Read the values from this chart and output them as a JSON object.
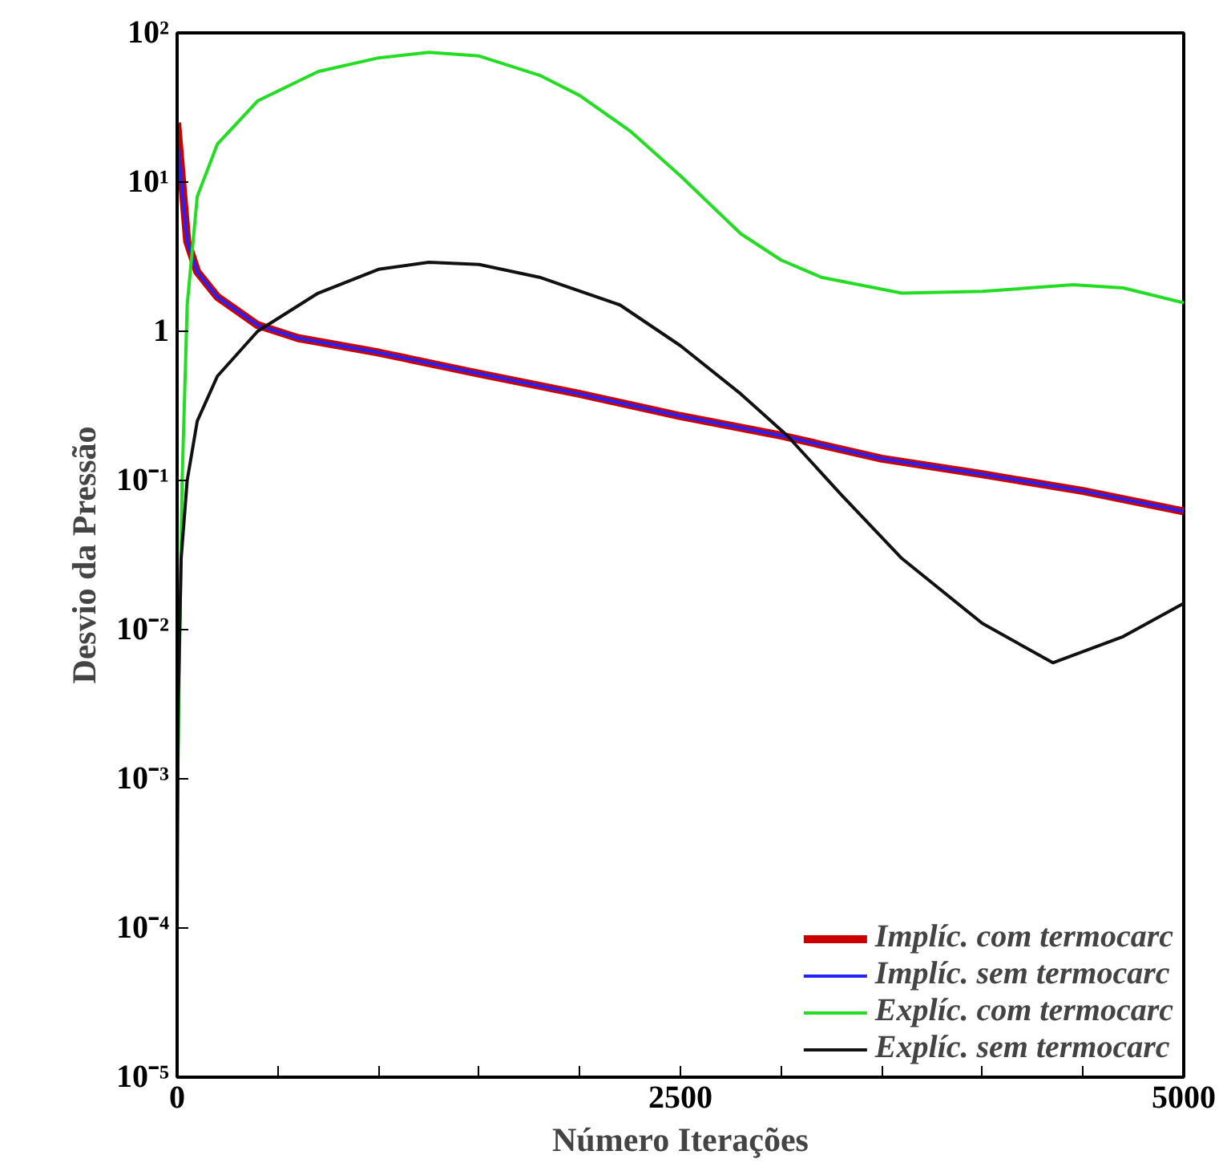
{
  "chart_data": {
    "type": "line",
    "xlabel": "Número Iterações",
    "ylabel": "Desvio da Pressão",
    "log": "y",
    "xlim": [
      0,
      5000
    ],
    "ylim": [
      1e-05,
      100
    ],
    "xticks": [
      0,
      {
        "value": 500,
        "label": null
      },
      {
        "value": 1000,
        "label": null
      },
      {
        "value": 1500,
        "label": null
      },
      {
        "value": 2000,
        "label": null
      },
      2500,
      {
        "value": 3000,
        "label": null
      },
      {
        "value": 3500,
        "label": null
      },
      {
        "value": 4000,
        "label": null
      },
      {
        "value": 4500,
        "label": null
      },
      5000
    ],
    "yticks": [
      {
        "value": 1e-05,
        "label": "10⁻⁵"
      },
      {
        "value": 0.0001,
        "label": "10⁻⁴"
      },
      {
        "value": 0.001,
        "label": "10⁻³"
      },
      {
        "value": 0.01,
        "label": "10⁻²"
      },
      {
        "value": 0.1,
        "label": "10⁻¹"
      },
      1,
      {
        "value": 10,
        "label": "10¹"
      },
      {
        "value": 100,
        "label": "10²"
      }
    ],
    "grid": false,
    "legend": "bottom right",
    "line_style": "solid",
    "marker": "none",
    "series": [
      {
        "name": "Implíc. com termocarc",
        "color": "#cc0000",
        "x": [
          0,
          50,
          100,
          200,
          400,
          600,
          1000,
          1500,
          2000,
          2500,
          3000,
          3500,
          4000,
          4500,
          5000
        ],
        "values": [
          25,
          4,
          2.5,
          1.7,
          1.1,
          0.9,
          0.72,
          0.52,
          0.38,
          0.27,
          0.2,
          0.14,
          0.11,
          0.085,
          0.062
        ]
      },
      {
        "name": "Implíc. sem termocarc",
        "color": "#2222ff",
        "x": [
          0,
          50,
          100,
          200,
          400,
          600,
          1000,
          1500,
          2000,
          2500,
          3000,
          3500,
          4000,
          4500,
          5000
        ],
        "values": [
          20,
          4,
          2.5,
          1.7,
          1.1,
          0.9,
          0.72,
          0.52,
          0.38,
          0.27,
          0.2,
          0.14,
          0.11,
          0.085,
          0.062
        ]
      },
      {
        "name": "Explíc. com termocarc",
        "color": "#22dd22",
        "x": [
          0,
          10,
          25,
          50,
          100,
          200,
          400,
          700,
          1000,
          1250,
          1500,
          1800,
          2000,
          2250,
          2500,
          2800,
          3000,
          3200,
          3600,
          4000,
          4450,
          4700,
          5000
        ],
        "values": [
          0.0005,
          0.005,
          0.1,
          1.5,
          8,
          18,
          35,
          55,
          68,
          74,
          70,
          52,
          38,
          22,
          11,
          4.5,
          3,
          2.3,
          1.8,
          1.85,
          2.05,
          1.95,
          1.55
        ]
      },
      {
        "name": "Explíc. sem termocarc",
        "color": "#111111",
        "x": [
          0,
          5,
          20,
          50,
          100,
          200,
          400,
          700,
          1000,
          1250,
          1500,
          1800,
          2200,
          2500,
          2800,
          3030,
          3300,
          3600,
          4000,
          4350,
          4700,
          5000
        ],
        "values": [
          0.0001,
          0.003,
          0.03,
          0.1,
          0.25,
          0.5,
          1.0,
          1.8,
          2.6,
          2.9,
          2.8,
          2.3,
          1.5,
          0.8,
          0.38,
          0.2,
          0.08,
          0.03,
          0.011,
          0.006,
          0.009,
          0.015
        ]
      }
    ]
  }
}
